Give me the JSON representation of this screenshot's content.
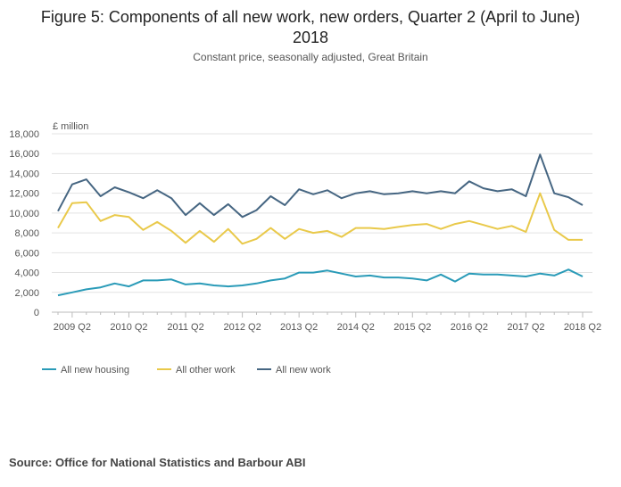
{
  "title_line1": "Figure 5: Components of all new work, new orders, Quarter 2 (April to June)",
  "title_line2": "2018",
  "subtitle": "Constant price, seasonally adjusted, Great Britain",
  "source": "Source: Office for National Statistics and Barbour ABI",
  "chart_data": {
    "type": "line",
    "title": "Figure 5: Components of all new work, new orders, Quarter 2 (April to June) 2018",
    "subtitle": "Constant price, seasonally adjusted, Great Britain",
    "ylabel": "£ million",
    "xlabel": "",
    "ylim": [
      0,
      18000
    ],
    "yticks": [
      0,
      2000,
      4000,
      6000,
      8000,
      10000,
      12000,
      14000,
      16000,
      18000
    ],
    "ytick_labels": [
      "0",
      "2,000",
      "4,000",
      "6,000",
      "8,000",
      "10,000",
      "12,000",
      "14,000",
      "16,000",
      "18,000"
    ],
    "grid": "horizontal",
    "legend_position": "bottom-left",
    "x": [
      "2009 Q1",
      "2009 Q2",
      "2009 Q3",
      "2009 Q4",
      "2010 Q1",
      "2010 Q2",
      "2010 Q3",
      "2010 Q4",
      "2011 Q1",
      "2011 Q2",
      "2011 Q3",
      "2011 Q4",
      "2012 Q1",
      "2012 Q2",
      "2012 Q3",
      "2012 Q4",
      "2013 Q1",
      "2013 Q2",
      "2013 Q3",
      "2013 Q4",
      "2014 Q1",
      "2014 Q2",
      "2014 Q3",
      "2014 Q4",
      "2015 Q1",
      "2015 Q2",
      "2015 Q3",
      "2015 Q4",
      "2016 Q1",
      "2016 Q2",
      "2016 Q3",
      "2016 Q4",
      "2017 Q1",
      "2017 Q2",
      "2017 Q3",
      "2017 Q4",
      "2018 Q1",
      "2018 Q2"
    ],
    "x_tick_labels": [
      "2009 Q2",
      "2010 Q2",
      "2011 Q2",
      "2012 Q2",
      "2013 Q2",
      "2014 Q2",
      "2015 Q2",
      "2016 Q2",
      "2017 Q2",
      "2018 Q2"
    ],
    "series": [
      {
        "name": "All new housing",
        "color": "#2a9bb8",
        "values": [
          1700,
          2000,
          2300,
          2500,
          2900,
          2600,
          3200,
          3200,
          3300,
          2800,
          2900,
          2700,
          2600,
          2700,
          2900,
          3200,
          3400,
          4000,
          4000,
          4200,
          3900,
          3600,
          3700,
          3500,
          3500,
          3400,
          3200,
          3800,
          3100,
          3900,
          3800,
          3800,
          3700,
          3600,
          3900,
          3700,
          4300,
          3600
        ]
      },
      {
        "name": "All other work",
        "color": "#e9c94a",
        "values": [
          8500,
          11000,
          11100,
          9200,
          9800,
          9600,
          8300,
          9100,
          8200,
          7000,
          8200,
          7100,
          8400,
          6900,
          7400,
          8500,
          7400,
          8400,
          8000,
          8200,
          7600,
          8500,
          8500,
          8400,
          8600,
          8800,
          8900,
          8400,
          8900,
          9200,
          8800,
          8400,
          8700,
          8100,
          12000,
          8300,
          7300,
          7300
        ]
      },
      {
        "name": "All new work",
        "color": "#466682",
        "values": [
          10200,
          12900,
          13400,
          11700,
          12600,
          12100,
          11500,
          12300,
          11500,
          9800,
          11000,
          9800,
          10900,
          9600,
          10300,
          11700,
          10800,
          12400,
          11900,
          12300,
          11500,
          12000,
          12200,
          11900,
          12000,
          12200,
          12000,
          12200,
          12000,
          13200,
          12500,
          12200,
          12400,
          11700,
          15900,
          12000,
          11600,
          10800
        ]
      }
    ]
  }
}
